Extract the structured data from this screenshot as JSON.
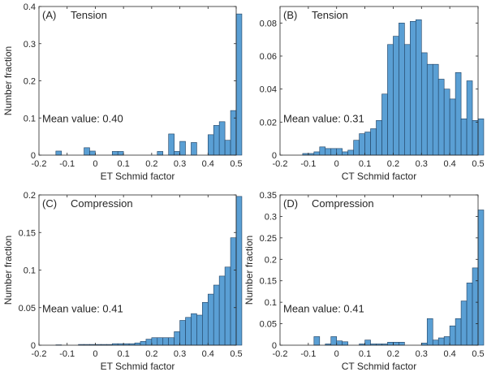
{
  "colors": {
    "bar_fill": "#5a9fd4",
    "bar_edge": "#1f3f5f",
    "axis": "#262626"
  },
  "chart_data": [
    {
      "type": "bar",
      "panel_label": "(A)",
      "title": "Tension",
      "xlabel": "ET Schmid factor",
      "ylabel": "Number fraction",
      "annotation": "Mean value: 0.40",
      "xlim": [
        -0.2,
        0.5
      ],
      "ylim": [
        0,
        0.4
      ],
      "xticks": [
        "-0.2",
        "-0.1",
        "0",
        "0.1",
        "0.2",
        "0.3",
        "0.4",
        "0.5"
      ],
      "yticks": [
        "0",
        "0.1",
        "0.2",
        "0.3",
        "0.4"
      ],
      "bin_width": 0.02,
      "bin_start": -0.2,
      "values": [
        0,
        0,
        0,
        0.011,
        0,
        0,
        0,
        0,
        0.02,
        0.011,
        0,
        0,
        0,
        0.01,
        0.01,
        0,
        0,
        0,
        0,
        0,
        0,
        0.01,
        0,
        0.057,
        0.01,
        0.037,
        0,
        0.034,
        0,
        0,
        0.055,
        0.08,
        0.09,
        0.04,
        0.12,
        0.38
      ]
    },
    {
      "type": "bar",
      "panel_label": "(B)",
      "title": "Tension",
      "xlabel": "CT Schmid factor",
      "ylabel": "",
      "annotation": "Mean value: 0.31",
      "xlim": [
        -0.2,
        0.5
      ],
      "ylim": [
        0,
        0.09
      ],
      "xticks": [
        "-0.2",
        "-0.1",
        "0",
        "0.1",
        "0.2",
        "0.3",
        "0.4",
        "0.5"
      ],
      "yticks": [
        "0",
        "0.02",
        "0.04",
        "0.06",
        "0.08"
      ],
      "bin_width": 0.02,
      "bin_start": -0.2,
      "values": [
        0,
        0,
        0,
        0,
        0.001,
        0.001,
        0.002,
        0.005,
        0.004,
        0.004,
        0.004,
        0.002,
        0.003,
        0.009,
        0.013,
        0.014,
        0.016,
        0.021,
        0.037,
        0.067,
        0.072,
        0.08,
        0.067,
        0.081,
        0.082,
        0.062,
        0.055,
        0.055,
        0.046,
        0.04,
        0.034,
        0.05,
        0.022,
        0.045,
        0.021,
        0.022
      ]
    },
    {
      "type": "bar",
      "panel_label": "(C)",
      "title": "Compression",
      "xlabel": "ET Schmid factor",
      "ylabel": "Number fraction",
      "annotation": "Mean value: 0.41",
      "xlim": [
        -0.2,
        0.5
      ],
      "ylim": [
        0,
        0.2
      ],
      "xticks": [
        "-0.2",
        "-0.1",
        "0",
        "0.1",
        "0.2",
        "0.3",
        "0.4",
        "0.5"
      ],
      "yticks": [
        "0",
        "0.05",
        "0.1",
        "0.15",
        "0.2"
      ],
      "bin_width": 0.02,
      "bin_start": -0.2,
      "values": [
        0,
        0,
        0,
        0.0005,
        0,
        0,
        0,
        0.001,
        0.001,
        0.001,
        0.001,
        0.001,
        0.001,
        0.002,
        0.002,
        0.002,
        0.002,
        0.003,
        0.005,
        0.008,
        0.01,
        0.01,
        0.01,
        0.01,
        0.018,
        0.033,
        0.037,
        0.042,
        0.04,
        0.057,
        0.068,
        0.08,
        0.092,
        0.104,
        0.143,
        0.198
      ]
    },
    {
      "type": "bar",
      "panel_label": "(D)",
      "title": "Compression",
      "xlabel": "CT Schmid factor",
      "ylabel": "Number fraction",
      "annotation": "Mean value: 0.41",
      "xlim": [
        -0.2,
        0.5
      ],
      "ylim": [
        0,
        0.35
      ],
      "xticks": [
        "-0.2",
        "-0.1",
        "0",
        "0.1",
        "0.2",
        "0.3",
        "0.4",
        "0.5"
      ],
      "yticks": [
        "0",
        "0.05",
        "0.1",
        "0.15",
        "0.2",
        "0.25",
        "0.3",
        "0.35"
      ],
      "bin_width": 0.02,
      "bin_start": -0.2,
      "values": [
        0,
        0,
        0,
        0,
        0,
        0,
        0.02,
        0,
        0.003,
        0.02,
        0.01,
        0.008,
        0,
        0,
        0.003,
        0.012,
        0.003,
        0.003,
        0.003,
        0.007,
        0.007,
        0.007,
        0,
        0,
        0,
        0.005,
        0.062,
        0.012,
        0.017,
        0.02,
        0.045,
        0.062,
        0.103,
        0.145,
        0.18,
        0.315
      ]
    }
  ]
}
